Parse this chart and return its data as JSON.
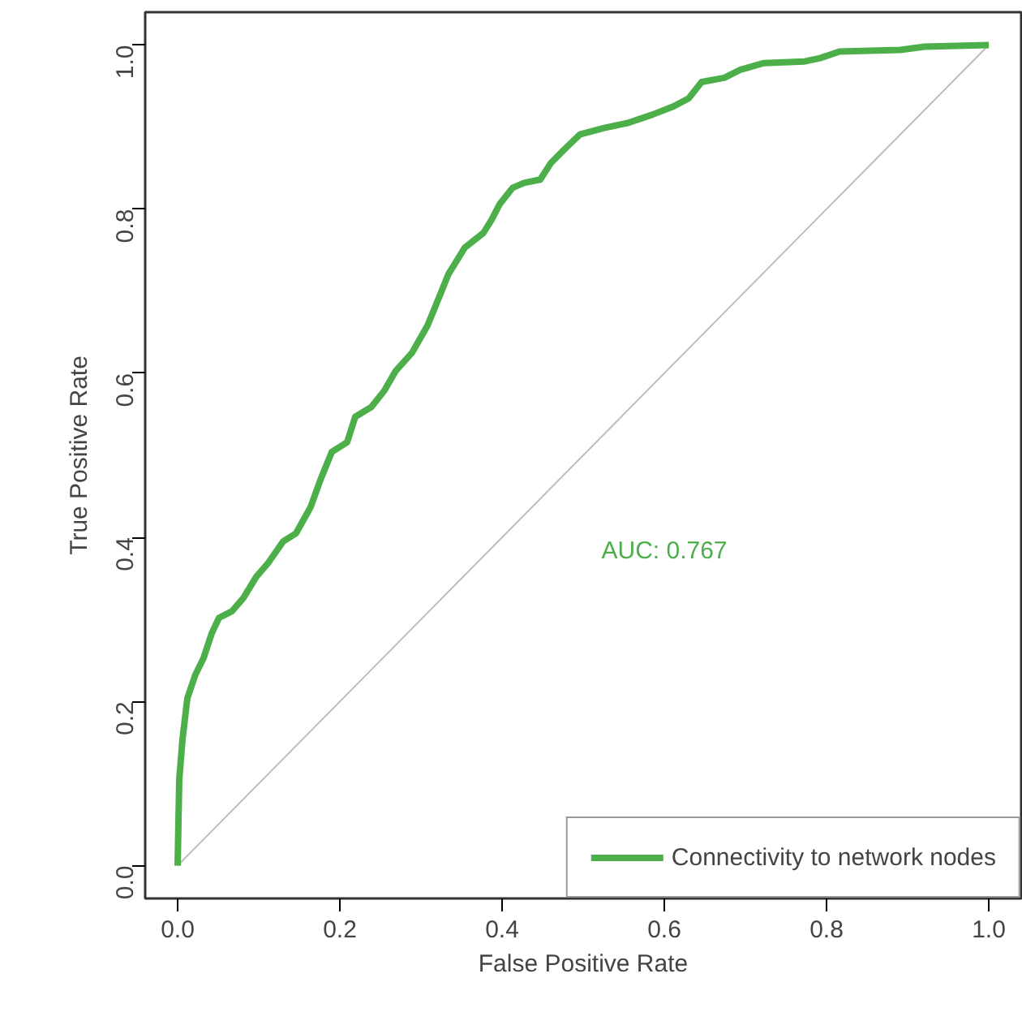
{
  "chart_data": {
    "type": "line",
    "xlabel": "False Positive Rate",
    "ylabel": "True Positive Rate",
    "xlim": [
      -0.04,
      1.04
    ],
    "ylim": [
      -0.04,
      1.04
    ],
    "xticks": [
      {
        "value": 0,
        "label": "0.0"
      },
      {
        "value": 0.2,
        "label": "0.2"
      },
      {
        "value": 0.4,
        "label": "0.4"
      },
      {
        "value": 0.6,
        "label": "0.6"
      },
      {
        "value": 0.8,
        "label": "0.8"
      },
      {
        "value": 1,
        "label": "1.0"
      }
    ],
    "yticks": [
      {
        "value": 0,
        "label": "0.0"
      },
      {
        "value": 0.2,
        "label": "0.2"
      },
      {
        "value": 0.4,
        "label": "0.4"
      },
      {
        "value": 0.6,
        "label": "0.6"
      },
      {
        "value": 0.8,
        "label": "0.8"
      },
      {
        "value": 1,
        "label": "1.0"
      }
    ],
    "grid": false,
    "legend": "bottom right",
    "annotations": [
      "AUC: 0.767"
    ],
    "series": [
      {
        "name": "Connectivity to network nodes",
        "color": "#4daf4a",
        "x": [
          0,
          0.002,
          0.006,
          0.012,
          0.022,
          0.032,
          0.042,
          0.051,
          0.067,
          0.081,
          0.097,
          0.111,
          0.13,
          0.146,
          0.164,
          0.176,
          0.19,
          0.209,
          0.219,
          0.239,
          0.255,
          0.269,
          0.289,
          0.308,
          0.318,
          0.334,
          0.354,
          0.377,
          0.387,
          0.397,
          0.413,
          0.427,
          0.447,
          0.46,
          0.476,
          0.496,
          0.526,
          0.555,
          0.585,
          0.611,
          0.63,
          0.646,
          0.674,
          0.694,
          0.723,
          0.773,
          0.792,
          0.816,
          0.891,
          0.921,
          1
        ],
        "values": [
          0,
          0.105,
          0.154,
          0.204,
          0.233,
          0.253,
          0.283,
          0.302,
          0.31,
          0.326,
          0.352,
          0.368,
          0.395,
          0.405,
          0.437,
          0.47,
          0.504,
          0.516,
          0.547,
          0.559,
          0.579,
          0.603,
          0.625,
          0.658,
          0.682,
          0.721,
          0.753,
          0.771,
          0.787,
          0.806,
          0.826,
          0.832,
          0.836,
          0.856,
          0.872,
          0.891,
          0.899,
          0.905,
          0.915,
          0.925,
          0.935,
          0.955,
          0.96,
          0.97,
          0.978,
          0.98,
          0.984,
          0.992,
          0.994,
          0.998,
          1
        ]
      },
      {
        "color": "#bebebe",
        "x": [
          0,
          1
        ],
        "values": [
          0,
          1
        ]
      }
    ]
  }
}
